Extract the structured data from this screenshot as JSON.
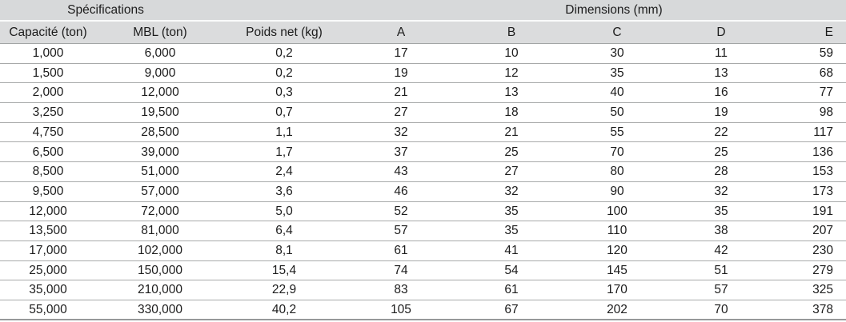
{
  "table": {
    "group_headers": [
      {
        "label": "Spécifications"
      },
      {
        "label": "Dimensions (mm)"
      }
    ],
    "columns": [
      "Capacité (ton)",
      "MBL (ton)",
      "Poids net (kg)",
      "A",
      "B",
      "C",
      "D",
      "E"
    ],
    "rows": [
      [
        "1,000",
        "6,000",
        "0,2",
        "17",
        "10",
        "30",
        "11",
        "59"
      ],
      [
        "1,500",
        "9,000",
        "0,2",
        "19",
        "12",
        "35",
        "13",
        "68"
      ],
      [
        "2,000",
        "12,000",
        "0,3",
        "21",
        "13",
        "40",
        "16",
        "77"
      ],
      [
        "3,250",
        "19,500",
        "0,7",
        "27",
        "18",
        "50",
        "19",
        "98"
      ],
      [
        "4,750",
        "28,500",
        "1,1",
        "32",
        "21",
        "55",
        "22",
        "117"
      ],
      [
        "6,500",
        "39,000",
        "1,7",
        "37",
        "25",
        "70",
        "25",
        "136"
      ],
      [
        "8,500",
        "51,000",
        "2,4",
        "43",
        "27",
        "80",
        "28",
        "153"
      ],
      [
        "9,500",
        "57,000",
        "3,6",
        "46",
        "32",
        "90",
        "32",
        "173"
      ],
      [
        "12,000",
        "72,000",
        "5,0",
        "52",
        "35",
        "100",
        "35",
        "191"
      ],
      [
        "13,500",
        "81,000",
        "6,4",
        "57",
        "35",
        "110",
        "38",
        "207"
      ],
      [
        "17,000",
        "102,000",
        "8,1",
        "61",
        "41",
        "120",
        "42",
        "230"
      ],
      [
        "25,000",
        "150,000",
        "15,4",
        "74",
        "54",
        "145",
        "51",
        "279"
      ],
      [
        "35,000",
        "210,000",
        "22,9",
        "83",
        "61",
        "170",
        "57",
        "325"
      ],
      [
        "55,000",
        "330,000",
        "40,2",
        "105",
        "67",
        "202",
        "70",
        "378"
      ]
    ]
  },
  "colors": {
    "header_bg_top": "#d7d9da",
    "header_bg_bottom": "#dbdcdd",
    "row_divider": "#a8aaaa",
    "text": "#1c1c1c"
  }
}
